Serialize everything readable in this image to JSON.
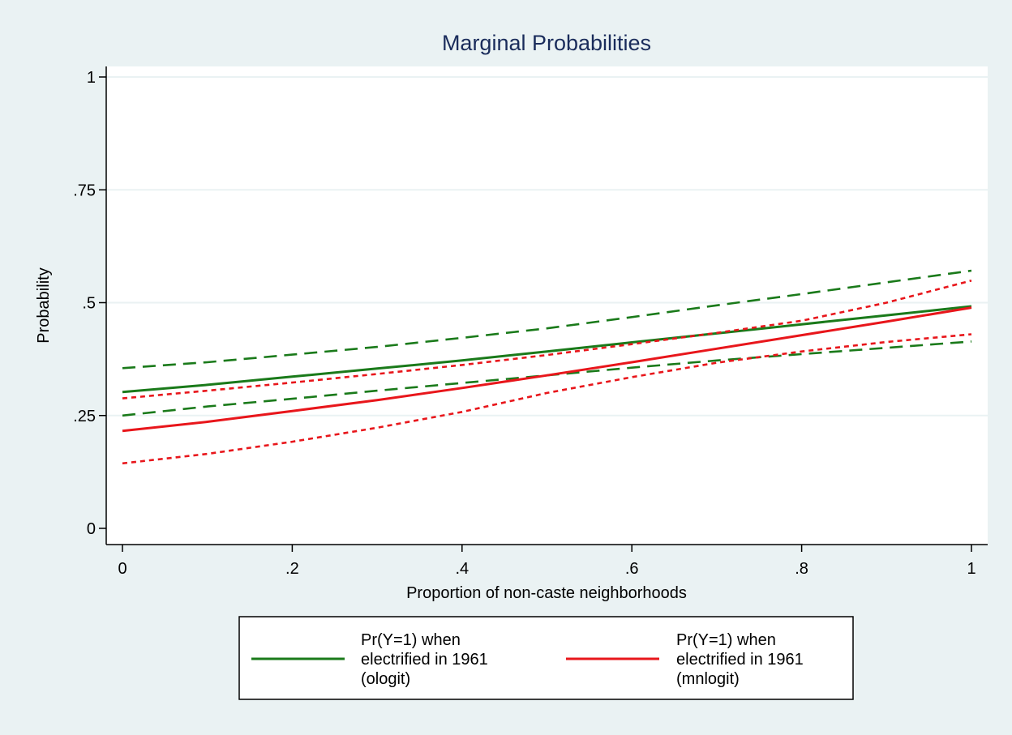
{
  "chart_data": {
    "type": "line",
    "title": "Marginal Probabilities",
    "xlabel": "Proportion of non-caste neighborhoods",
    "ylabel": "Probability",
    "xlim": [
      0,
      1
    ],
    "ylim": [
      0,
      1
    ],
    "xticks": [
      {
        "value": 0,
        "label": "0"
      },
      {
        "value": 0.2,
        "label": ".2"
      },
      {
        "value": 0.4,
        "label": ".4"
      },
      {
        "value": 0.6,
        "label": ".6"
      },
      {
        "value": 0.8,
        "label": ".8"
      },
      {
        "value": 1,
        "label": "1"
      }
    ],
    "yticks": [
      {
        "value": 0,
        "label": "0"
      },
      {
        "value": 0.25,
        "label": ".25"
      },
      {
        "value": 0.5,
        "label": ".5"
      },
      {
        "value": 0.75,
        "label": ".75"
      },
      {
        "value": 1,
        "label": "1"
      }
    ],
    "grid": true,
    "legend_position": "bottom",
    "x": [
      0,
      0.1,
      0.2,
      0.3,
      0.4,
      0.5,
      0.6,
      0.7,
      0.8,
      0.9,
      1.0
    ],
    "series": [
      {
        "name": "Pr(Y=1) when electrified in 1961 (ologit)",
        "legend_lines": [
          "Pr(Y=1) when",
          "electrified in 1961",
          "(ologit)"
        ],
        "color": "#1a7a1a",
        "style": "solid",
        "values": [
          0.302,
          0.318,
          0.336,
          0.354,
          0.372,
          0.392,
          0.412,
          0.432,
          0.452,
          0.472,
          0.492
        ]
      },
      {
        "name": "ologit upper bound",
        "color": "#1a7a1a",
        "style": "dashed",
        "values": [
          0.355,
          0.368,
          0.385,
          0.402,
          0.422,
          0.443,
          0.468,
          0.494,
          0.519,
          0.545,
          0.571
        ]
      },
      {
        "name": "ologit lower bound",
        "color": "#1a7a1a",
        "style": "dashed",
        "values": [
          0.25,
          0.27,
          0.287,
          0.305,
          0.322,
          0.339,
          0.356,
          0.372,
          0.386,
          0.4,
          0.414
        ]
      },
      {
        "name": "Pr(Y=1) when electrified in 1961 (mnlogit)",
        "legend_lines": [
          "Pr(Y=1) when",
          "electrified in 1961",
          "(mnlogit)"
        ],
        "color": "#e8161b",
        "style": "solid",
        "values": [
          0.216,
          0.236,
          0.26,
          0.284,
          0.311,
          0.339,
          0.368,
          0.398,
          0.428,
          0.458,
          0.489
        ]
      },
      {
        "name": "mnlogit upper bound",
        "color": "#e8161b",
        "style": "dotted",
        "values": [
          0.288,
          0.305,
          0.323,
          0.342,
          0.362,
          0.384,
          0.408,
          0.433,
          0.46,
          0.5,
          0.549
        ]
      },
      {
        "name": "mnlogit lower bound",
        "color": "#e8161b",
        "style": "dotted",
        "values": [
          0.144,
          0.165,
          0.192,
          0.223,
          0.258,
          0.3,
          0.335,
          0.367,
          0.392,
          0.413,
          0.43
        ]
      }
    ]
  },
  "colors": {
    "background": "#eaf2f3",
    "plot_background": "#ffffff",
    "grid": "#eaf2f3",
    "title": "#1a2c5b"
  }
}
